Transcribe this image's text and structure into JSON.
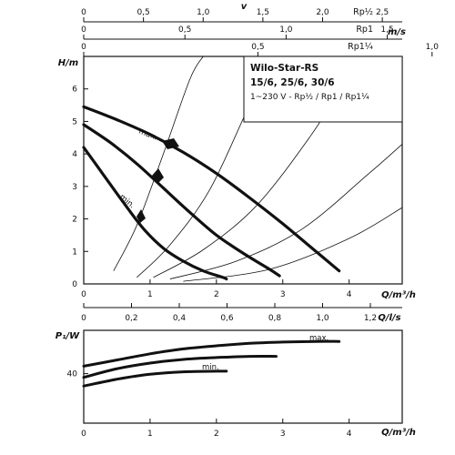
{
  "chart_data": [
    {
      "type": "line",
      "title": "Wilo-Star-RS",
      "subtitle_lines": [
        "15/6, 25/6, 30/6",
        "1~230 V - Rp½ / Rp1 / Rp1¼"
      ],
      "top_scales": [
        {
          "unit": "Rp½",
          "ticks": [
            "0",
            "0,5",
            "1,0",
            "1,5",
            "2,0",
            "2,5"
          ],
          "values": [
            0,
            0.5,
            1.0,
            1.5,
            2.0,
            2.5
          ],
          "q_per_unit": 1.8
        },
        {
          "unit": "Rp1",
          "ticks": [
            "0",
            "0,5",
            "1,0",
            "1,5"
          ],
          "values": [
            0,
            0.5,
            1.0,
            1.5
          ],
          "q_per_unit": 3.05
        },
        {
          "unit": "Rp1¼",
          "ticks": [
            "0",
            "0,5",
            "1,0"
          ],
          "values": [
            0,
            0.5,
            1.0
          ],
          "q_per_unit": 5.25
        }
      ],
      "top_scale_title": "v",
      "top_scale_unit": "m/s",
      "ylabel": "H/m",
      "xlabel": "Q/m³/h",
      "xlim": [
        0,
        4.8
      ],
      "ylim": [
        0,
        7
      ],
      "x_ticks": [
        "0",
        "1",
        "2",
        "3",
        "4"
      ],
      "y_ticks": [
        "0",
        "1",
        "2",
        "3",
        "4",
        "5",
        "6"
      ],
      "flow_ls_label": "Q/l/s",
      "flow_ls_ticks": [
        "0",
        "0,2",
        "0,4",
        "0,6",
        "0,8",
        "1,0",
        "1,2"
      ],
      "flow_ls_values": [
        0,
        0.2,
        0.4,
        0.6,
        0.8,
        1.0,
        1.2
      ],
      "series": [
        {
          "name": "max.",
          "x": [
            0,
            0.5,
            1.0,
            1.5,
            2.0,
            2.5,
            3.0,
            3.5,
            3.85
          ],
          "y": [
            5.45,
            5.05,
            4.6,
            4.05,
            3.4,
            2.65,
            1.85,
            1.0,
            0.4
          ]
        },
        {
          "name": "",
          "x": [
            0,
            0.4,
            0.8,
            1.2,
            1.6,
            2.0,
            2.4,
            2.8,
            2.95
          ],
          "y": [
            4.9,
            4.35,
            3.7,
            2.95,
            2.2,
            1.5,
            0.95,
            0.45,
            0.25
          ]
        },
        {
          "name": "min.",
          "x": [
            0,
            0.3,
            0.6,
            0.9,
            1.2,
            1.5,
            1.8,
            2.1,
            2.15
          ],
          "y": [
            4.2,
            3.35,
            2.5,
            1.7,
            1.1,
            0.7,
            0.4,
            0.2,
            0.15
          ]
        }
      ],
      "system_curves": [
        {
          "x": [
            0.45,
            0.8,
            1.2,
            1.6,
            1.8
          ],
          "y": [
            0.4,
            1.8,
            4.0,
            6.3,
            7.0
          ]
        },
        {
          "x": [
            0.8,
            1.3,
            1.9,
            2.5,
            2.9
          ],
          "y": [
            0.2,
            1.2,
            2.9,
            5.5,
            7.0
          ]
        },
        {
          "x": [
            1.05,
            1.8,
            2.6,
            3.4,
            4.0
          ],
          "y": [
            0.2,
            1.05,
            2.4,
            4.5,
            6.4
          ]
        },
        {
          "x": [
            1.3,
            2.3,
            3.3,
            4.3,
            4.8
          ],
          "y": [
            0.15,
            0.7,
            1.7,
            3.4,
            4.3
          ]
        },
        {
          "x": [
            1.5,
            2.8,
            4.0,
            4.8
          ],
          "y": [
            0.08,
            0.45,
            1.4,
            2.35
          ]
        }
      ],
      "annotations": [
        "max.",
        "min."
      ]
    },
    {
      "type": "line",
      "ylabel": "P₁/W",
      "xlabel": "Q/m³/h",
      "xlim": [
        0,
        4.8
      ],
      "ylim": [
        0,
        75
      ],
      "y_ticks": [
        "40"
      ],
      "x_ticks": [
        "0",
        "1",
        "2",
        "3",
        "4"
      ],
      "series": [
        {
          "name": "max.",
          "x": [
            0,
            0.5,
            1.0,
            1.5,
            2.0,
            2.5,
            3.0,
            3.5,
            3.85
          ],
          "y": [
            46,
            51,
            56,
            60,
            62.5,
            64.5,
            65.5,
            66,
            66
          ]
        },
        {
          "name": "",
          "x": [
            0,
            0.5,
            1.0,
            1.5,
            2.0,
            2.5,
            2.9
          ],
          "y": [
            37,
            44,
            48.5,
            51.5,
            53,
            54,
            54
          ]
        },
        {
          "name": "min.",
          "x": [
            0,
            0.5,
            1.0,
            1.5,
            2.0,
            2.15
          ],
          "y": [
            30,
            35.5,
            39.5,
            41.5,
            42,
            42
          ]
        }
      ]
    }
  ]
}
